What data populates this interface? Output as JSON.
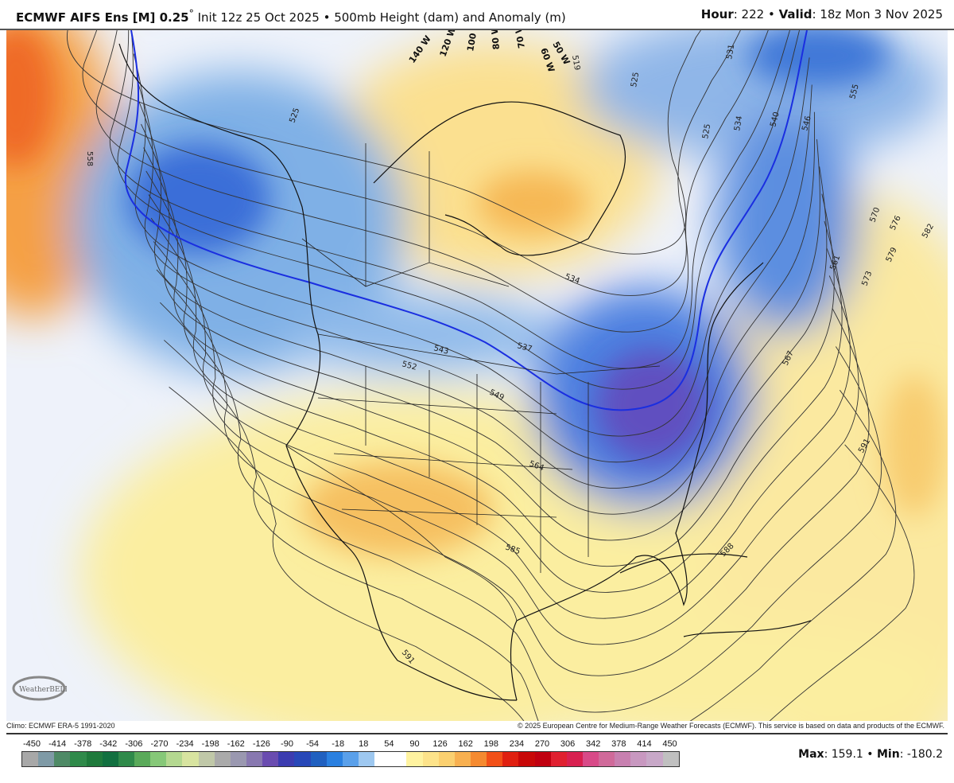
{
  "header": {
    "model": "ECMWF AIFS Ens [M] 0.25",
    "degree": "°",
    "init": " Init 12z 25 Oct 2025 • 500mb Height (dam) and Anomaly (m)",
    "hour_label": "Hour",
    "hour_value": ": 222 • ",
    "valid_label": "Valid",
    "valid_value": ": 18z Mon 3 Nov 2025"
  },
  "map": {
    "longitude_labels": [
      "140 W",
      "120 W",
      "100 W",
      "80 W",
      "70 W",
      "60 W",
      "50 W"
    ],
    "contour_labels": [
      "558",
      "525",
      "525",
      "519",
      "525",
      "531",
      "534",
      "540",
      "546",
      "555",
      "570",
      "576",
      "582",
      "579",
      "573",
      "561",
      "567",
      "591",
      "588",
      "585",
      "564",
      "549",
      "552",
      "543",
      "537",
      "534",
      "591"
    ],
    "highlight_contour_color": "#1a2ee0",
    "logo_text": "WeatherBELL"
  },
  "footer": {
    "climo": "Climo: ECMWF ERA-5 1991-2020",
    "copyright": "© 2025 European Centre for Medium-Range Weather Forecasts (ECMWF). This service is based on data and products of the ECMWF."
  },
  "colorbar": {
    "ticks": [
      "-450",
      "-414",
      "-378",
      "-342",
      "-306",
      "-270",
      "-234",
      "-198",
      "-162",
      "-126",
      "-90",
      "-54",
      "-18",
      "18",
      "54",
      "90",
      "126",
      "162",
      "198",
      "234",
      "270",
      "306",
      "342",
      "378",
      "414",
      "450"
    ],
    "colors": [
      "#a8a8a8",
      "#7f9aa6",
      "#4e8a66",
      "#2f8a4a",
      "#1f7a3c",
      "#127040",
      "#2f8a4a",
      "#5aaa5a",
      "#86c878",
      "#b4d890",
      "#d8e4a0",
      "#c0c8a8",
      "#aaaaaa",
      "#9a98b0",
      "#8878b0",
      "#6a4cb0",
      "#3c3cb0",
      "#2848b8",
      "#2060c0",
      "#2a80e0",
      "#5aa0ea",
      "#9ec8f0",
      "#ffffff",
      "#ffffff",
      "#fff3a0",
      "#fde38a",
      "#fbd070",
      "#f8b050",
      "#f58a30",
      "#f25018",
      "#e02010",
      "#c80808",
      "#c00010",
      "#e02030",
      "#d82050",
      "#d84a88",
      "#d06a9a",
      "#c880b0",
      "#c898c0",
      "#c8a8c8",
      "#c0c0c0"
    ],
    "max_label": "Max",
    "max_value": ": 159.1 • ",
    "min_label": "Min",
    "min_value": ": -180.2"
  }
}
